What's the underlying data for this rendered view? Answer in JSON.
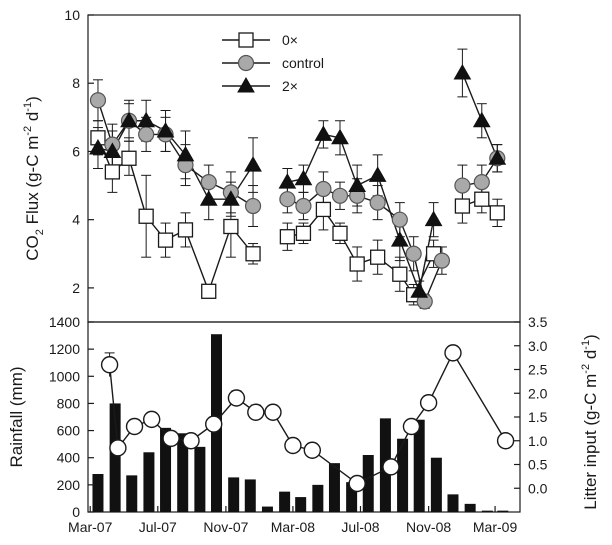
{
  "colors": {
    "axis": "#1a1a1a",
    "series_0x_fill": "#ffffff",
    "series_control_fill": "#a9a9a9",
    "series_2x_fill": "#111111",
    "bars": "#111111",
    "litter_fill": "#ffffff"
  },
  "chart_data": [
    {
      "type": "line",
      "panel": "top",
      "ylabel_main": "CO",
      "ylabel_sub2": "2",
      "ylabel_mid": " Flux (g-C m",
      "ylabel_sup_a": "-2",
      "ylabel_space": " d",
      "ylabel_sup_b": "-1",
      "ylabel_end": ")",
      "ylim": [
        1,
        10
      ],
      "yticks": [
        2,
        4,
        6,
        8,
        10
      ],
      "xlim": [
        "2007-02-25",
        "2009-04-15"
      ],
      "legend_position": "top-center",
      "series": [
        {
          "name": "0×",
          "marker": "square",
          "segments": [
            [
              {
                "x": "2007-03-15",
                "y": 6.4,
                "err": 0.5
              },
              {
                "x": "2007-04-10",
                "y": 5.4,
                "err": 0.6
              },
              {
                "x": "2007-05-10",
                "y": 5.8,
                "err": 0.5
              },
              {
                "x": "2007-06-10",
                "y": 4.1,
                "err": 1.2
              },
              {
                "x": "2007-07-15",
                "y": 3.4,
                "err": 0.5
              },
              {
                "x": "2007-08-20",
                "y": 3.7,
                "err": 0.5
              },
              {
                "x": "2007-10-01",
                "y": 1.9,
                "err": 0.1
              },
              {
                "x": "2007-11-10",
                "y": 3.8,
                "err": 0.9
              },
              {
                "x": "2007-12-20",
                "y": 3.0,
                "err": 0.3
              }
            ],
            [
              {
                "x": "2008-02-20",
                "y": 3.5,
                "err": 0.4
              },
              {
                "x": "2008-03-20",
                "y": 3.6,
                "err": 0.3
              },
              {
                "x": "2008-04-25",
                "y": 4.3,
                "err": 0.6
              },
              {
                "x": "2008-05-25",
                "y": 3.6,
                "err": 0.3
              },
              {
                "x": "2008-06-25",
                "y": 2.7,
                "err": 0.5
              },
              {
                "x": "2008-08-01",
                "y": 2.9,
                "err": 0.5
              },
              {
                "x": "2008-09-10",
                "y": 2.4,
                "err": 0.5
              },
              {
                "x": "2008-10-05",
                "y": 1.8,
                "err": 0.3
              },
              {
                "x": "2008-11-10",
                "y": 3.0,
                "err": 0.4
              }
            ],
            [
              {
                "x": "2009-01-01",
                "y": 4.4,
                "err": 0.5
              },
              {
                "x": "2009-02-05",
                "y": 4.6,
                "err": 0.4
              },
              {
                "x": "2009-03-05",
                "y": 4.2,
                "err": 0.4
              }
            ]
          ]
        },
        {
          "name": "control",
          "marker": "circle",
          "segments": [
            [
              {
                "x": "2007-03-15",
                "y": 7.5,
                "err": 0.6
              },
              {
                "x": "2007-04-10",
                "y": 6.2,
                "err": 0.6
              },
              {
                "x": "2007-05-10",
                "y": 6.9,
                "err": 0.5
              },
              {
                "x": "2007-06-10",
                "y": 6.5,
                "err": 0.5
              },
              {
                "x": "2007-07-15",
                "y": 6.5,
                "err": 0.5
              },
              {
                "x": "2007-08-20",
                "y": 5.6,
                "err": 0.6
              },
              {
                "x": "2007-10-01",
                "y": 5.1,
                "err": 0.5
              },
              {
                "x": "2007-11-10",
                "y": 4.8,
                "err": 0.6
              },
              {
                "x": "2007-12-20",
                "y": 4.4,
                "err": 0.6
              }
            ],
            [
              {
                "x": "2008-02-20",
                "y": 4.6,
                "err": 0.4
              },
              {
                "x": "2008-03-20",
                "y": 4.4,
                "err": 0.4
              },
              {
                "x": "2008-04-25",
                "y": 4.9,
                "err": 0.5
              },
              {
                "x": "2008-05-25",
                "y": 4.7,
                "err": 0.4
              },
              {
                "x": "2008-06-25",
                "y": 4.7,
                "err": 0.5
              },
              {
                "x": "2008-08-01",
                "y": 4.5,
                "err": 0.5
              },
              {
                "x": "2008-09-10",
                "y": 4.0,
                "err": 0.5
              },
              {
                "x": "2008-10-05",
                "y": 3.0,
                "err": 0.5
              },
              {
                "x": "2008-10-25",
                "y": 1.6,
                "err": 0.2
              },
              {
                "x": "2008-11-25",
                "y": 2.8,
                "err": 0.4
              }
            ],
            [
              {
                "x": "2009-01-01",
                "y": 5.0,
                "err": 0.6
              },
              {
                "x": "2009-02-05",
                "y": 5.1,
                "err": 0.5
              },
              {
                "x": "2009-03-05",
                "y": 5.8,
                "err": 0.4
              }
            ]
          ]
        },
        {
          "name": "2×",
          "marker": "triangle",
          "segments": [
            [
              {
                "x": "2007-03-15",
                "y": 6.1,
                "err": 0.6
              },
              {
                "x": "2007-04-10",
                "y": 6.0,
                "err": 0.6
              },
              {
                "x": "2007-05-10",
                "y": 6.9,
                "err": 0.6
              },
              {
                "x": "2007-06-10",
                "y": 6.9,
                "err": 0.6
              },
              {
                "x": "2007-07-15",
                "y": 6.6,
                "err": 0.6
              },
              {
                "x": "2007-08-20",
                "y": 5.9,
                "err": 0.7
              },
              {
                "x": "2007-10-01",
                "y": 4.6,
                "err": 0.6
              },
              {
                "x": "2007-11-10",
                "y": 4.6,
                "err": 0.5
              },
              {
                "x": "2007-12-20",
                "y": 5.6,
                "err": 0.8
              }
            ],
            [
              {
                "x": "2008-02-20",
                "y": 5.1,
                "err": 0.4
              },
              {
                "x": "2008-03-20",
                "y": 5.2,
                "err": 0.4
              },
              {
                "x": "2008-04-25",
                "y": 6.5,
                "err": 0.4
              },
              {
                "x": "2008-05-25",
                "y": 6.4,
                "err": 0.5
              },
              {
                "x": "2008-06-25",
                "y": 5.0,
                "err": 0.6
              },
              {
                "x": "2008-08-01",
                "y": 5.3,
                "err": 0.6
              },
              {
                "x": "2008-09-10",
                "y": 3.4,
                "err": 0.6
              },
              {
                "x": "2008-10-15",
                "y": 1.9,
                "err": 0.3
              },
              {
                "x": "2008-11-10",
                "y": 4.0,
                "err": 0.5
              }
            ],
            [
              {
                "x": "2009-01-01",
                "y": 8.3,
                "err": 0.7
              },
              {
                "x": "2009-02-05",
                "y": 6.9,
                "err": 0.5
              },
              {
                "x": "2009-03-05",
                "y": 5.8,
                "err": 0.4
              }
            ]
          ]
        }
      ]
    },
    {
      "type": "bar",
      "panel": "bottom",
      "ylabel_left": "Rainfall (mm)",
      "ylabel_right_main": "Litter input (g-C m",
      "ylabel_right_sup_a": "-2",
      "ylabel_right_space": " d",
      "ylabel_right_sup_b": "-1",
      "ylabel_right_end": ")",
      "ylim_left": [
        0,
        1400
      ],
      "yticks_left": [
        0,
        200,
        400,
        600,
        800,
        1000,
        1200,
        1400
      ],
      "ylim_right": [
        -0.5,
        3.5
      ],
      "yticks_right": [
        "0.0",
        "0.5",
        "1.0",
        "1.5",
        "2.0",
        "2.5",
        "3.0",
        "3.5"
      ],
      "xlim": [
        "2007-02-25",
        "2009-04-15"
      ],
      "xtick_labels": [
        {
          "x": "2007-03-01",
          "label": "Mar-07"
        },
        {
          "x": "2007-07-01",
          "label": "Jul-07"
        },
        {
          "x": "2007-11-01",
          "label": "Nov-07"
        },
        {
          "x": "2008-03-01",
          "label": "Mar-08"
        },
        {
          "x": "2008-07-01",
          "label": "Jul-08"
        },
        {
          "x": "2008-11-01",
          "label": "Nov-08"
        },
        {
          "x": "2009-03-01",
          "label": "Mar-09"
        }
      ],
      "bars": [
        {
          "x": "2007-03-15",
          "value": 280
        },
        {
          "x": "2007-04-15",
          "value": 800
        },
        {
          "x": "2007-05-15",
          "value": 270
        },
        {
          "x": "2007-06-15",
          "value": 440
        },
        {
          "x": "2007-07-15",
          "value": 620
        },
        {
          "x": "2007-08-15",
          "value": 580
        },
        {
          "x": "2007-09-15",
          "value": 480
        },
        {
          "x": "2007-10-15",
          "value": 1310
        },
        {
          "x": "2007-11-15",
          "value": 255
        },
        {
          "x": "2007-12-15",
          "value": 240
        },
        {
          "x": "2008-01-15",
          "value": 40
        },
        {
          "x": "2008-02-15",
          "value": 150
        },
        {
          "x": "2008-03-15",
          "value": 110
        },
        {
          "x": "2008-04-15",
          "value": 200
        },
        {
          "x": "2008-05-15",
          "value": 360
        },
        {
          "x": "2008-06-15",
          "value": 220
        },
        {
          "x": "2008-07-15",
          "value": 420
        },
        {
          "x": "2008-08-15",
          "value": 690
        },
        {
          "x": "2008-09-15",
          "value": 540
        },
        {
          "x": "2008-10-15",
          "value": 680
        },
        {
          "x": "2008-11-15",
          "value": 400
        },
        {
          "x": "2008-12-15",
          "value": 130
        },
        {
          "x": "2009-01-15",
          "value": 60
        },
        {
          "x": "2009-02-15",
          "value": 10
        },
        {
          "x": "2009-03-15",
          "value": 10
        }
      ],
      "litter_series": {
        "marker": "circle-open",
        "points": [
          {
            "x": "2007-04-05",
            "y": 2.6,
            "err": 0.25
          },
          {
            "x": "2007-04-20",
            "y": 0.85,
            "err": 0
          },
          {
            "x": "2007-05-20",
            "y": 1.3,
            "err": 0
          },
          {
            "x": "2007-06-20",
            "y": 1.45,
            "err": 0
          },
          {
            "x": "2007-07-25",
            "y": 1.05,
            "err": 0
          },
          {
            "x": "2007-08-30",
            "y": 1.0,
            "err": 0
          },
          {
            "x": "2007-10-10",
            "y": 1.35,
            "err": 0
          },
          {
            "x": "2007-11-20",
            "y": 1.9,
            "err": 0.15
          },
          {
            "x": "2007-12-25",
            "y": 1.6,
            "err": 0.15
          },
          {
            "x": "2008-01-25",
            "y": 1.6,
            "err": 0
          },
          {
            "x": "2008-03-01",
            "y": 0.9,
            "err": 0
          },
          {
            "x": "2008-04-05",
            "y": 0.8,
            "err": 0
          },
          {
            "x": "2008-06-25",
            "y": 0.1,
            "err": 0
          },
          {
            "x": "2008-08-25",
            "y": 0.45,
            "err": 0
          },
          {
            "x": "2008-10-01",
            "y": 1.3,
            "err": 0
          },
          {
            "x": "2008-11-01",
            "y": 1.8,
            "err": 0
          },
          {
            "x": "2008-12-15",
            "y": 2.85,
            "err": 0
          },
          {
            "x": "2009-03-20",
            "y": 1.0,
            "err": 0
          }
        ]
      }
    }
  ]
}
